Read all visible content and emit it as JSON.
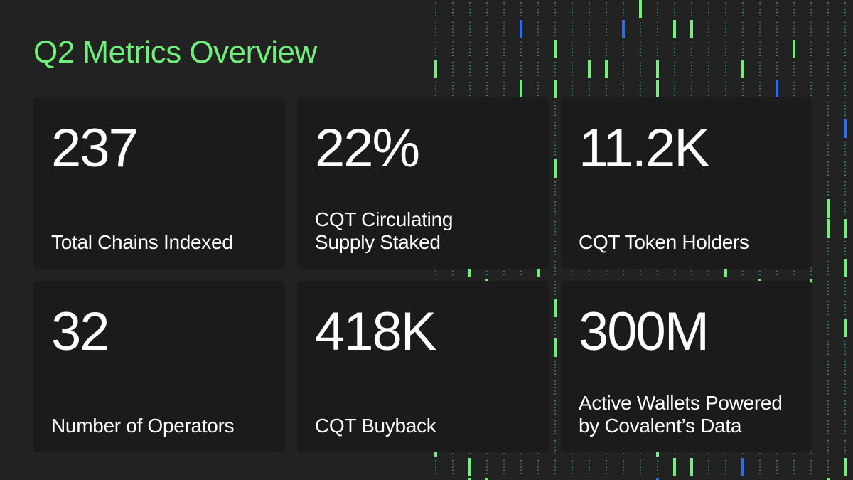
{
  "title": "Q2 Metrics Overview",
  "colors": {
    "background": "#222222",
    "card_background": "#1b1b1b",
    "accent_green": "#6ef07a",
    "accent_blue": "#2a6ff0",
    "dot_teal": "#3fb5a0",
    "text": "#ffffff"
  },
  "metrics": [
    {
      "value": "237",
      "label": "Total Chains Indexed"
    },
    {
      "value": "22%",
      "label": "CQT Circulating Supply Staked"
    },
    {
      "value": "11.2K",
      "label": "CQT Token Holders"
    },
    {
      "value": "32",
      "label": "Number of Operators"
    },
    {
      "value": "418K",
      "label": "CQT Buyback"
    },
    {
      "value": "300M",
      "label": "Active Wallets Powered by Covalent’s Data"
    }
  ]
}
